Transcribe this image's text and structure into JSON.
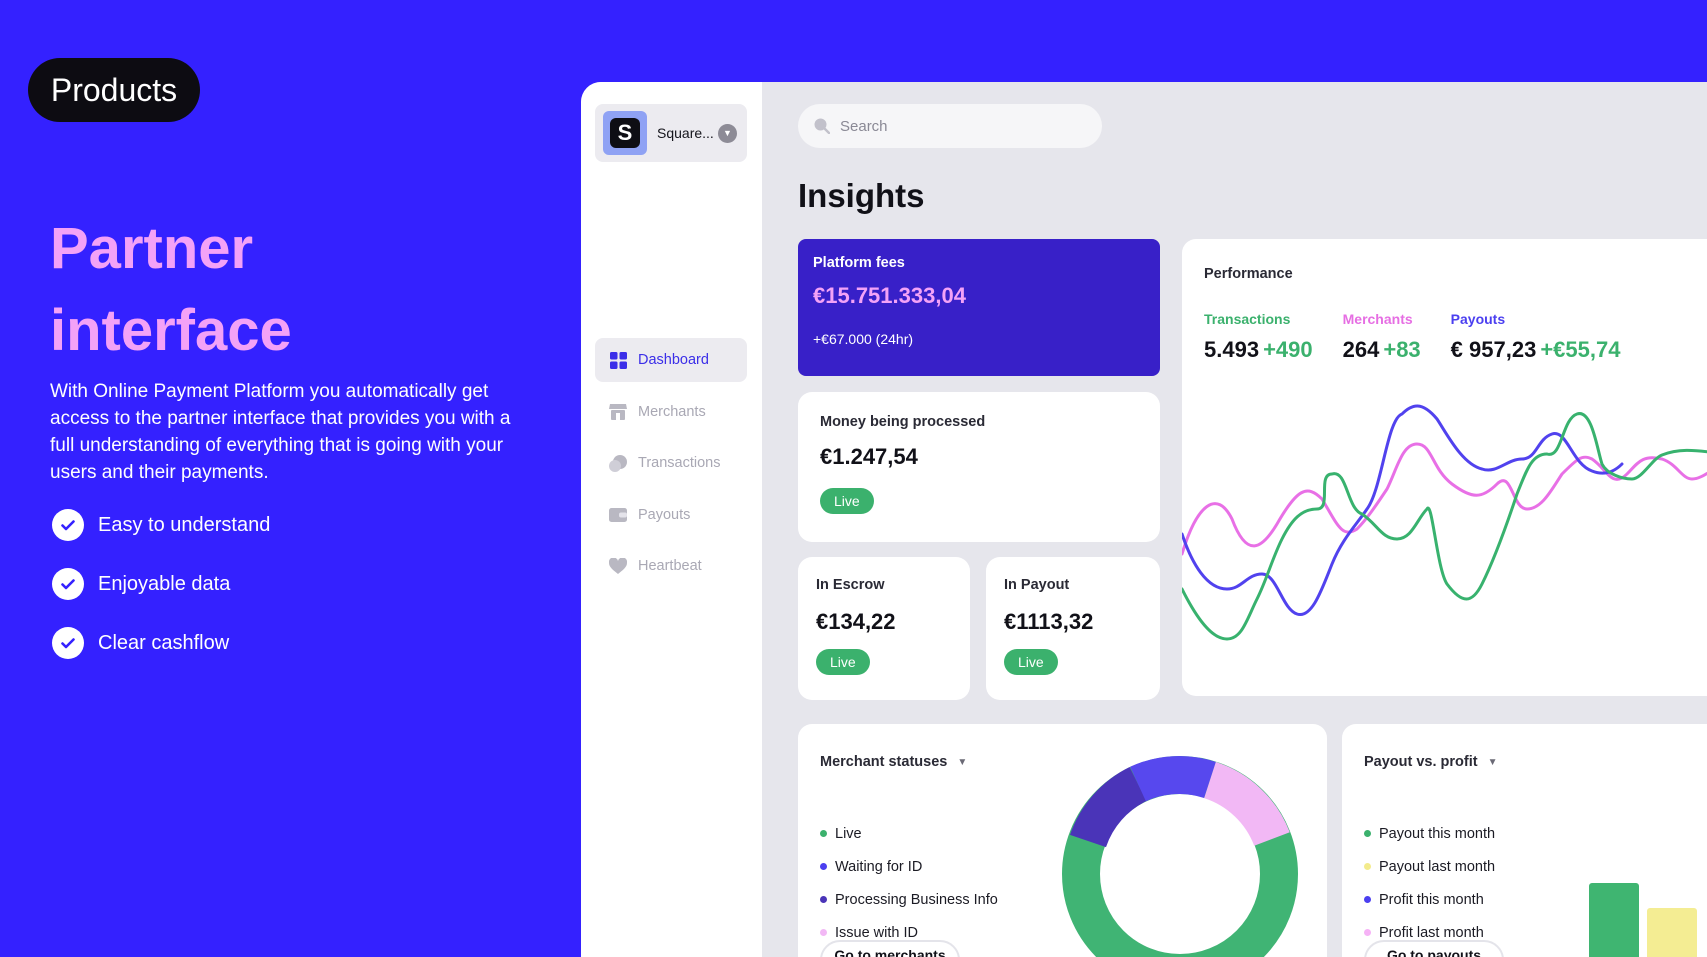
{
  "hero": {
    "badge": "Products",
    "title_line1": "Partner",
    "title_line2": "interface",
    "description": "With Online Payment Platform you automatically get access to the partner interface that provides you with a full understanding of everything that is going with your users and their payments.",
    "features": [
      "Easy to understand",
      "Enjoyable data",
      "Clear cashflow"
    ]
  },
  "sidebar": {
    "org_name": "Square...",
    "items": [
      {
        "label": "Dashboard",
        "icon": "grid-icon",
        "active": true
      },
      {
        "label": "Merchants",
        "icon": "store-icon",
        "active": false
      },
      {
        "label": "Transactions",
        "icon": "coins-icon",
        "active": false
      },
      {
        "label": "Payouts",
        "icon": "wallet-icon",
        "active": false
      },
      {
        "label": "Heartbeat",
        "icon": "heart-icon",
        "active": false
      }
    ]
  },
  "search": {
    "placeholder": "Search"
  },
  "page_title": "Insights",
  "cards": {
    "platform_fees": {
      "title": "Platform fees",
      "value": "€15.751.333,04",
      "change": "+€67.000 (24hr)"
    },
    "processed": {
      "title": "Money being processed",
      "value": "€1.247,54",
      "badge": "Live"
    },
    "escrow": {
      "title": "In Escrow",
      "value": "€134,22",
      "badge": "Live"
    },
    "payout": {
      "title": "In Payout",
      "value": "€1113,32",
      "badge": "Live"
    }
  },
  "performance": {
    "title": "Performance",
    "stats": [
      {
        "label": "Transactions",
        "value": "5.493",
        "change": "+490",
        "color": "#3bb16d"
      },
      {
        "label": "Merchants",
        "value": "264",
        "change": "+83",
        "color": "#e66ee3"
      },
      {
        "label": "Payouts",
        "value": "€ 957,23",
        "change": "+€55,74",
        "color": "#4b3ff0"
      }
    ]
  },
  "merchant_statuses": {
    "title": "Merchant statuses",
    "legend": [
      {
        "label": "Live",
        "color": "#3bb16d"
      },
      {
        "label": "Waiting for ID",
        "color": "#4b3ff0"
      },
      {
        "label": "Processing Business Info",
        "color": "#4a34b8"
      },
      {
        "label": "Issue with ID",
        "color": "#f2b8f5"
      }
    ],
    "button": "Go to merchants"
  },
  "payout_profit": {
    "title": "Payout vs. profit",
    "legend": [
      {
        "label": "Payout this month",
        "color": "#3bb16d"
      },
      {
        "label": "Payout last month",
        "color": "#f3eb8c"
      },
      {
        "label": "Profit this month",
        "color": "#4b3ff0"
      },
      {
        "label": "Profit last month",
        "color": "#f6b2f6"
      }
    ],
    "button": "Go to payouts"
  },
  "colors": {
    "brand": "#3421ff",
    "accent_pink": "#f3a2f7",
    "live_green": "#3bb16d",
    "fees_card": "#3820c8"
  }
}
